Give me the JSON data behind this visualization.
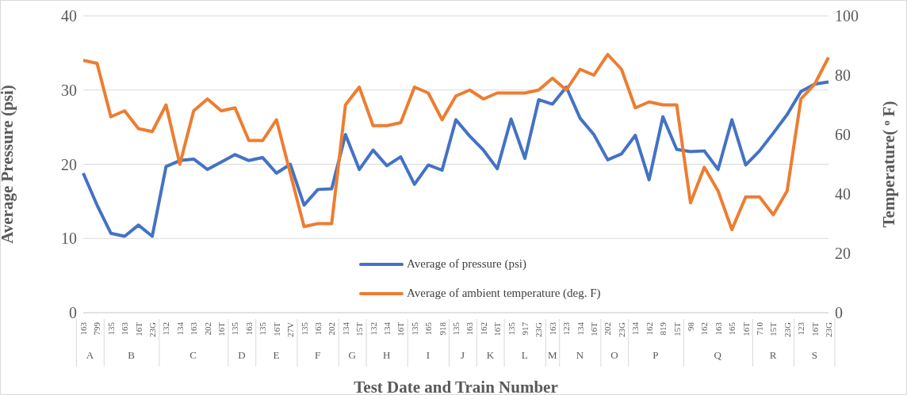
{
  "chart_data": {
    "type": "line",
    "xlabel": "Test Date and Train Number",
    "ylabel": "Average Pressure (psi)",
    "y2label": "Temperature( ᵒ F)",
    "categories": [
      "163",
      "799",
      "135",
      "163",
      "16T",
      "23G",
      "132",
      "134",
      "163",
      "202",
      "16T",
      "135",
      "163",
      "135",
      "16T",
      "27V",
      "135",
      "163",
      "202",
      "134",
      "15T",
      "132",
      "134",
      "16T",
      "135",
      "165",
      "918",
      "135",
      "163",
      "162",
      "16T",
      "135",
      "917",
      "23G",
      "163",
      "123",
      "134",
      "16T",
      "202",
      "23G",
      "134",
      "162",
      "819",
      "15T",
      "98",
      "162",
      "163",
      "165",
      "16T",
      "710",
      "15T",
      "23G",
      "123",
      "16T",
      "23G"
    ],
    "annotations": [
      "A",
      "B",
      "C",
      "D",
      "E",
      "F",
      "G",
      "H",
      "I",
      "J",
      "K",
      "L",
      "M",
      "N",
      "O",
      "P",
      "Q",
      "R",
      "S"
    ],
    "series": [
      {
        "name": "Average of pressure (psi)",
        "color": "#4472c4",
        "values": [
          18.8,
          14.5,
          10.7,
          10.3,
          11.8,
          10.3,
          19.7,
          20.5,
          20.7,
          19.3,
          20.3,
          21.3,
          20.5,
          20.9,
          18.8,
          20.0,
          14.5,
          16.6,
          16.7,
          24.0,
          19.3,
          21.9,
          19.8,
          21.0,
          17.3,
          19.9,
          19.2,
          26.0,
          23.8,
          21.9,
          19.4,
          26.1,
          20.8,
          28.7,
          28.1,
          30.4,
          26.2,
          24.0,
          20.6,
          21.4,
          23.9,
          17.9,
          26.4,
          22.0,
          21.7,
          21.8,
          19.3,
          26.0,
          19.9,
          21.8,
          24.2,
          26.7,
          29.8,
          30.8,
          31.1
        ]
      },
      {
        "name": "Average of ambient temperature (deg. F)",
        "color": "#ed7d31",
        "axis": "y2",
        "values": [
          85,
          84,
          66,
          68,
          62,
          61,
          70,
          50,
          68,
          72,
          68,
          69,
          58,
          58,
          65,
          47,
          29,
          30,
          30,
          70,
          76,
          63,
          63,
          64,
          76,
          74,
          65,
          73,
          75,
          72,
          74,
          74,
          74,
          75,
          79,
          75,
          82,
          80,
          87,
          82,
          69,
          71,
          70,
          70,
          37,
          49,
          41,
          28,
          39,
          39,
          33,
          41,
          72,
          77,
          86
        ]
      }
    ],
    "ylim": [
      0,
      40
    ],
    "yticks": [
      0,
      10,
      20,
      30,
      40
    ],
    "y2lim": [
      0,
      100
    ],
    "y2ticks": [
      0,
      20,
      40,
      60,
      80,
      100
    ],
    "grid": "y",
    "legend": "bottom",
    "marker": "none",
    "line_style": "solid"
  }
}
